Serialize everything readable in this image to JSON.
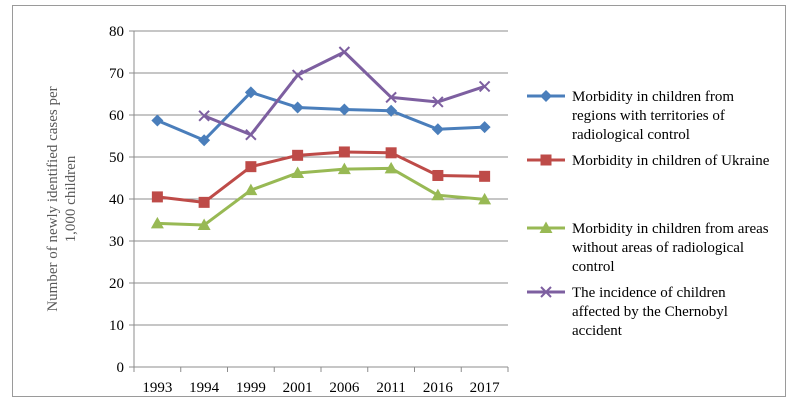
{
  "chart_data": {
    "type": "line",
    "categories": [
      "1993",
      "1994",
      "1999",
      "2001",
      "2006",
      "2011",
      "2016",
      "2017"
    ],
    "ylabel": "Number of newly identified cases per 1,000 children",
    "ylabel_lines": [
      "Number of newly identified cases per",
      "1,000 children"
    ],
    "ylim": [
      0,
      80
    ],
    "yticks": [
      0,
      10,
      20,
      30,
      40,
      50,
      60,
      70,
      80
    ],
    "grid": true,
    "legend_position": "right",
    "series": [
      {
        "name": "Morbidity in children from regions with territories of radiological control",
        "name_lines": [
          "Morbidity in children from",
          "regions with territories of",
          "radiological control"
        ],
        "values": [
          58.7,
          54.0,
          65.4,
          61.8,
          61.3,
          61.0,
          56.6,
          57.1
        ],
        "color": "#4a7ebb",
        "marker": "diamond"
      },
      {
        "name": "Morbidity in children of Ukraine",
        "name_lines": [
          "Morbidity in children of Ukraine"
        ],
        "values": [
          40.5,
          39.2,
          47.7,
          50.4,
          51.2,
          51.0,
          45.6,
          45.4
        ],
        "color": "#be4b48",
        "marker": "square"
      },
      {
        "name": "Morbidity in children from areas without areas of radiological control",
        "name_lines": [
          "Morbidity in children from areas",
          "without areas of radiological",
          "control"
        ],
        "values": [
          34.2,
          33.8,
          42.1,
          46.2,
          47.1,
          47.3,
          40.9,
          39.9
        ],
        "color": "#98b954",
        "marker": "triangle"
      },
      {
        "name": "The incidence of children affected by the Chernobyl accident",
        "name_lines": [
          "The incidence of children",
          "affected by the Chernobyl",
          "accident"
        ],
        "values": [
          null,
          59.8,
          55.3,
          69.5,
          75.0,
          64.2,
          63.1,
          66.8
        ],
        "color": "#7d5fa0",
        "marker": "x"
      }
    ]
  }
}
